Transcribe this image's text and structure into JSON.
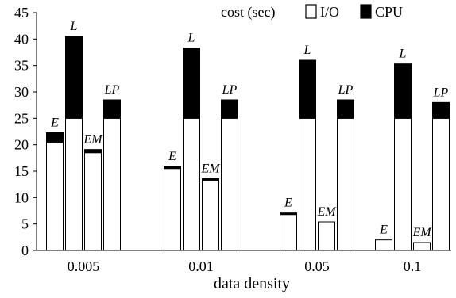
{
  "chart_data": {
    "type": "bar",
    "stacked": true,
    "xlabel": "data density",
    "ylabel": "",
    "ylim": [
      0,
      45
    ],
    "yticks": [
      0,
      5,
      10,
      15,
      20,
      25,
      30,
      35,
      40,
      45
    ],
    "grid": false,
    "legend": {
      "title": "cost (sec)",
      "placement": "top-right",
      "entries": [
        {
          "name": "I/O",
          "color": "#ffffff"
        },
        {
          "name": "CPU",
          "color": "#000000"
        }
      ]
    },
    "categories": [
      "0.005",
      "0.01",
      "0.05",
      "0.1"
    ],
    "bar_labels": [
      "E",
      "L",
      "EM",
      "LP"
    ],
    "series": [
      {
        "name": "I/O",
        "values": [
          [
            20.5,
            25.0,
            18.5,
            25.0
          ],
          [
            15.5,
            25.0,
            13.3,
            25.0
          ],
          [
            6.8,
            25.0,
            5.4,
            25.0
          ],
          [
            2.0,
            25.0,
            1.5,
            25.0
          ]
        ]
      },
      {
        "name": "CPU",
        "values": [
          [
            1.8,
            15.5,
            0.6,
            3.5
          ],
          [
            0.4,
            13.3,
            0.3,
            3.5
          ],
          [
            0.3,
            11.0,
            0.0,
            3.5
          ],
          [
            0.0,
            10.3,
            0.0,
            3.0
          ]
        ]
      }
    ]
  }
}
